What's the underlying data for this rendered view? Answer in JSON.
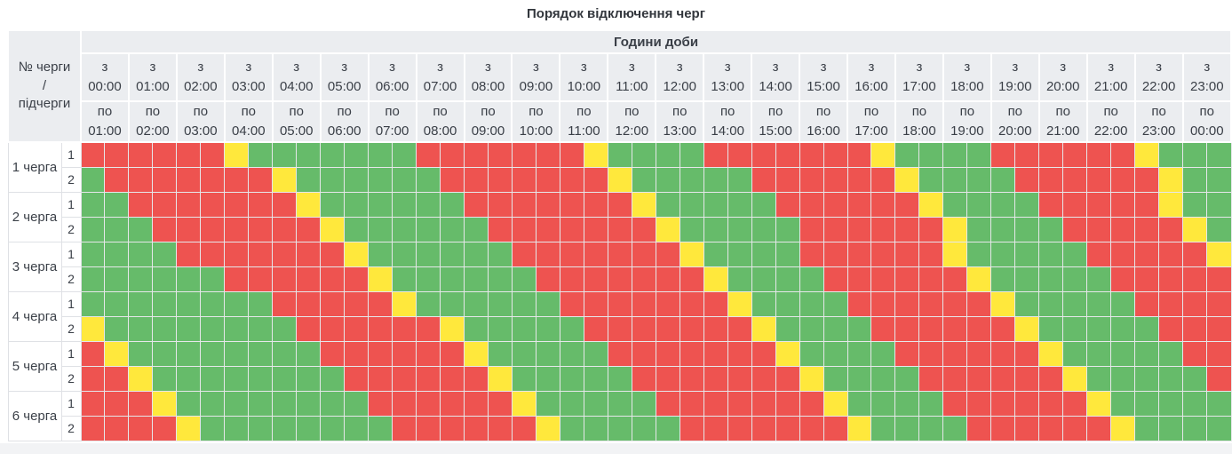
{
  "title": "Порядок відключення черг",
  "colors": {
    "header_background": "#ebedf0",
    "red": "#ee5350",
    "green": "#66bb6a",
    "yellow": "#ffe83c"
  },
  "chart_data": {
    "type": "heatmap",
    "title": "Порядок відключення черг",
    "x_axis_group_label": "Години доби",
    "column_from_prefix": "з",
    "column_to_prefix": "по",
    "slot_minutes": 30,
    "slots_per_column": 2,
    "row_header": [
      "№ черги",
      "/",
      "підчерги"
    ],
    "columns": [
      {
        "from": "00:00",
        "to": "01:00"
      },
      {
        "from": "01:00",
        "to": "02:00"
      },
      {
        "from": "02:00",
        "to": "03:00"
      },
      {
        "from": "03:00",
        "to": "04:00"
      },
      {
        "from": "04:00",
        "to": "05:00"
      },
      {
        "from": "05:00",
        "to": "06:00"
      },
      {
        "from": "06:00",
        "to": "07:00"
      },
      {
        "from": "07:00",
        "to": "08:00"
      },
      {
        "from": "08:00",
        "to": "09:00"
      },
      {
        "from": "09:00",
        "to": "10:00"
      },
      {
        "from": "10:00",
        "to": "11:00"
      },
      {
        "from": "11:00",
        "to": "12:00"
      },
      {
        "from": "12:00",
        "to": "13:00"
      },
      {
        "from": "13:00",
        "to": "14:00"
      },
      {
        "from": "14:00",
        "to": "15:00"
      },
      {
        "from": "15:00",
        "to": "16:00"
      },
      {
        "from": "16:00",
        "to": "17:00"
      },
      {
        "from": "17:00",
        "to": "18:00"
      },
      {
        "from": "18:00",
        "to": "19:00"
      },
      {
        "from": "19:00",
        "to": "20:00"
      },
      {
        "from": "20:00",
        "to": "21:00"
      },
      {
        "from": "21:00",
        "to": "22:00"
      },
      {
        "from": "22:00",
        "to": "23:00"
      },
      {
        "from": "23:00",
        "to": "00:00"
      }
    ],
    "cell_colors": {
      "R": "#ee5350",
      "G": "#66bb6a",
      "Y": "#ffe83c"
    },
    "rows": [
      {
        "queue": "1 черга",
        "subqueues": [
          {
            "label": "1",
            "slots": "RRRRRRYGGGGGGGRRRRRRRYGGGGRRRRRRRYGGGGRRRRRRYGGG"
          },
          {
            "label": "2",
            "slots": "GRRRRRRRYGGGGGGRRRRRRRYGGGGGRRRRRRYGGGGRRRRRRYGG"
          }
        ]
      },
      {
        "queue": "2 черга",
        "subqueues": [
          {
            "label": "1",
            "slots": "GGRRRRRRRYGGGGGGRRRRRRRYGGGGGRRRRRRYGGGGRRRRRYGG"
          },
          {
            "label": "2",
            "slots": "GGGRRRRRRRYGGGGGGRRRRRRRYGGGGGRRRRRRYGGGGRRRRRYG"
          }
        ]
      },
      {
        "queue": "3 черга",
        "subqueues": [
          {
            "label": "1",
            "slots": "GGGGRRRRRRRYGGGGGGRRRRRRRYGGGGRRRRRRYGGGGGRRRRRY"
          },
          {
            "label": "2",
            "slots": "GGGGGGRRRRRRYGGGGGGRRRRRRRYGGGGRRRRRRYGGGGGRRRRR"
          }
        ]
      },
      {
        "queue": "4 черга",
        "subqueues": [
          {
            "label": "1",
            "slots": "GGGGGGGGRRRRRYGGGGGGRRRRRRRYGGGGRRRRRRYGGGGGRRRR"
          },
          {
            "label": "2",
            "slots": "YGGGGGGGGRRRRRRYGGGGGRRRRRRRYGGGGRRRRRRYGGGGGRRR"
          }
        ]
      },
      {
        "queue": "5 черга",
        "subqueues": [
          {
            "label": "1",
            "slots": "RYGGGGGGGGRRRRRRYGGGGGRRRRRRRYGGGGRRRRRRYGGGGGRR"
          },
          {
            "label": "2",
            "slots": "RRYGGGGGGGGRRRRRRYGGGGGRRRRRRRYGGGGRRRRRRYGGGGGR"
          }
        ]
      },
      {
        "queue": "6 черга",
        "subqueues": [
          {
            "label": "1",
            "slots": "RRRYGGGGGGGGRRRRRRYGGGGGRRRRRRRYGGGGRRRRRRYGGGGG"
          },
          {
            "label": "2",
            "slots": "RRRRYGGGGGGGGRRRRRRYGGGGGRRRRRRRYGGGGRRRRRRYGGGG"
          }
        ]
      }
    ]
  }
}
